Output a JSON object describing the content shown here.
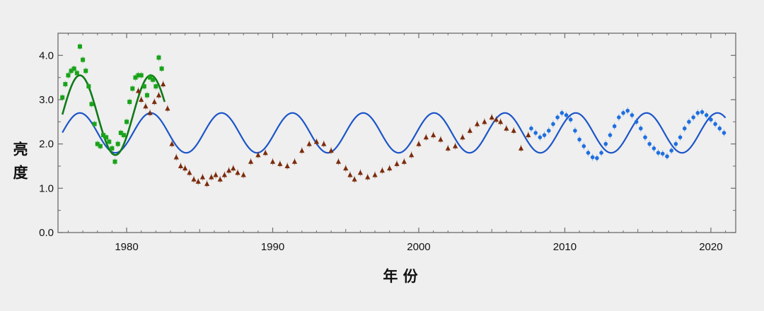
{
  "chart_data": {
    "type": "scatter",
    "xlabel": "年 份",
    "ylabel": "亮度",
    "xlim": [
      1975.3,
      2021.7
    ],
    "ylim": [
      0,
      4.5
    ],
    "x_ticks": [
      1980,
      1990,
      2000,
      2010,
      2020
    ],
    "y_ticks": [
      0,
      1,
      2,
      3,
      4
    ],
    "x_tick_labels": [
      "1980",
      "1990",
      "2000",
      "2010",
      "2020"
    ],
    "y_tick_labels": [
      "0.0",
      "1.0",
      "2.0",
      "3.0",
      "4.0"
    ],
    "grid": false,
    "legend": "none",
    "colors": {
      "green": "#1aa31a",
      "brown": "#7a2b0c",
      "blue": "#1e6fe0",
      "model_blue": "#1c55c9",
      "model_green": "#0f7a18"
    },
    "series": [
      {
        "marker": "square",
        "color": "#1aa31a",
        "x": [
          1975.6,
          1975.8,
          1976.0,
          1976.2,
          1976.4,
          1976.6,
          1976.8,
          1977.0,
          1977.2,
          1977.4,
          1977.6,
          1977.8,
          1978.0,
          1978.2,
          1978.4,
          1978.6,
          1978.8,
          1979.0,
          1979.2,
          1979.4,
          1979.6,
          1979.8,
          1980.0,
          1980.2,
          1980.4,
          1980.6,
          1980.8,
          1981.0,
          1981.2,
          1981.4,
          1981.6,
          1981.8,
          1982.0,
          1982.2,
          1982.4
        ],
        "y": [
          3.05,
          3.35,
          3.55,
          3.65,
          3.7,
          3.6,
          4.2,
          3.9,
          3.65,
          3.3,
          2.9,
          2.45,
          2.0,
          1.95,
          2.2,
          2.15,
          2.05,
          1.9,
          1.6,
          2.0,
          2.25,
          2.2,
          2.5,
          2.95,
          3.25,
          3.5,
          3.55,
          3.55,
          3.3,
          3.1,
          3.5,
          3.45,
          3.3,
          3.95,
          3.7
        ]
      },
      {
        "marker": "triangle",
        "color": "#7a2b0c",
        "x": [
          1980.8,
          1981.0,
          1981.3,
          1981.6,
          1981.9,
          1982.2,
          1982.5,
          1982.8,
          1983.1,
          1983.4,
          1983.7,
          1984.0,
          1984.3,
          1984.6,
          1984.9,
          1985.2,
          1985.5,
          1985.8,
          1986.1,
          1986.4,
          1986.7,
          1987.0,
          1987.3,
          1987.6,
          1988.0,
          1988.5,
          1989.0,
          1989.5,
          1990.0,
          1990.5,
          1991.0,
          1991.5,
          1992.0,
          1992.5,
          1993.0,
          1993.5,
          1994.0,
          1994.5,
          1995.0,
          1995.3,
          1995.6,
          1996.0,
          1996.5,
          1997.0,
          1997.5,
          1998.0,
          1998.5,
          1999.0,
          1999.5,
          2000.0,
          2000.5,
          2001.0,
          2001.5,
          2002.0,
          2002.5,
          2003.0,
          2003.5,
          2004.0,
          2004.5,
          2005.0,
          2005.3,
          2005.6,
          2006.0,
          2006.5,
          2007.0,
          2007.5
        ],
        "y": [
          3.2,
          3.0,
          2.85,
          2.7,
          2.95,
          3.1,
          3.35,
          2.8,
          2.0,
          1.7,
          1.5,
          1.45,
          1.35,
          1.2,
          1.15,
          1.25,
          1.1,
          1.25,
          1.3,
          1.2,
          1.3,
          1.4,
          1.45,
          1.35,
          1.3,
          1.6,
          1.75,
          1.8,
          1.6,
          1.55,
          1.5,
          1.6,
          1.85,
          2.0,
          2.05,
          2.0,
          1.85,
          1.6,
          1.45,
          1.3,
          1.2,
          1.35,
          1.25,
          1.3,
          1.4,
          1.45,
          1.55,
          1.6,
          1.75,
          2.0,
          2.15,
          2.2,
          2.1,
          1.9,
          1.95,
          2.15,
          2.3,
          2.45,
          2.5,
          2.6,
          2.55,
          2.5,
          2.35,
          2.3,
          1.9,
          2.2
        ]
      },
      {
        "marker": "circle",
        "color": "#1e6fe0",
        "x": [
          2007.7,
          2008.0,
          2008.3,
          2008.6,
          2008.9,
          2009.2,
          2009.5,
          2009.8,
          2010.1,
          2010.4,
          2010.7,
          2011.0,
          2011.3,
          2011.6,
          2011.9,
          2012.2,
          2012.5,
          2012.8,
          2013.1,
          2013.4,
          2013.7,
          2014.0,
          2014.3,
          2014.6,
          2014.9,
          2015.2,
          2015.5,
          2015.8,
          2016.1,
          2016.4,
          2016.7,
          2017.0,
          2017.3,
          2017.6,
          2017.9,
          2018.2,
          2018.5,
          2018.8,
          2019.1,
          2019.4,
          2019.7,
          2020.0,
          2020.3,
          2020.6,
          2020.9
        ],
        "y": [
          2.35,
          2.25,
          2.15,
          2.2,
          2.3,
          2.45,
          2.6,
          2.7,
          2.65,
          2.55,
          2.3,
          2.1,
          1.95,
          1.8,
          1.7,
          1.68,
          1.8,
          2.0,
          2.2,
          2.4,
          2.6,
          2.7,
          2.75,
          2.65,
          2.5,
          2.35,
          2.15,
          2.0,
          1.9,
          1.8,
          1.78,
          1.72,
          1.85,
          2.0,
          2.15,
          2.35,
          2.5,
          2.6,
          2.7,
          2.72,
          2.65,
          2.55,
          2.45,
          2.35,
          2.25
        ]
      }
    ],
    "models": [
      {
        "kind": "sinusoid",
        "color": "#1c55c9",
        "mean": 2.25,
        "amplitude": 0.45,
        "period": 4.85,
        "peak_at": 1976.8,
        "x_range": [
          1975.6,
          2021.0
        ]
      },
      {
        "kind": "sinusoid",
        "color": "#0f7a18",
        "mean": 2.65,
        "amplitude": 0.9,
        "period": 4.85,
        "peak_at": 1976.8,
        "x_range": [
          1975.6,
          1982.6
        ]
      }
    ]
  }
}
